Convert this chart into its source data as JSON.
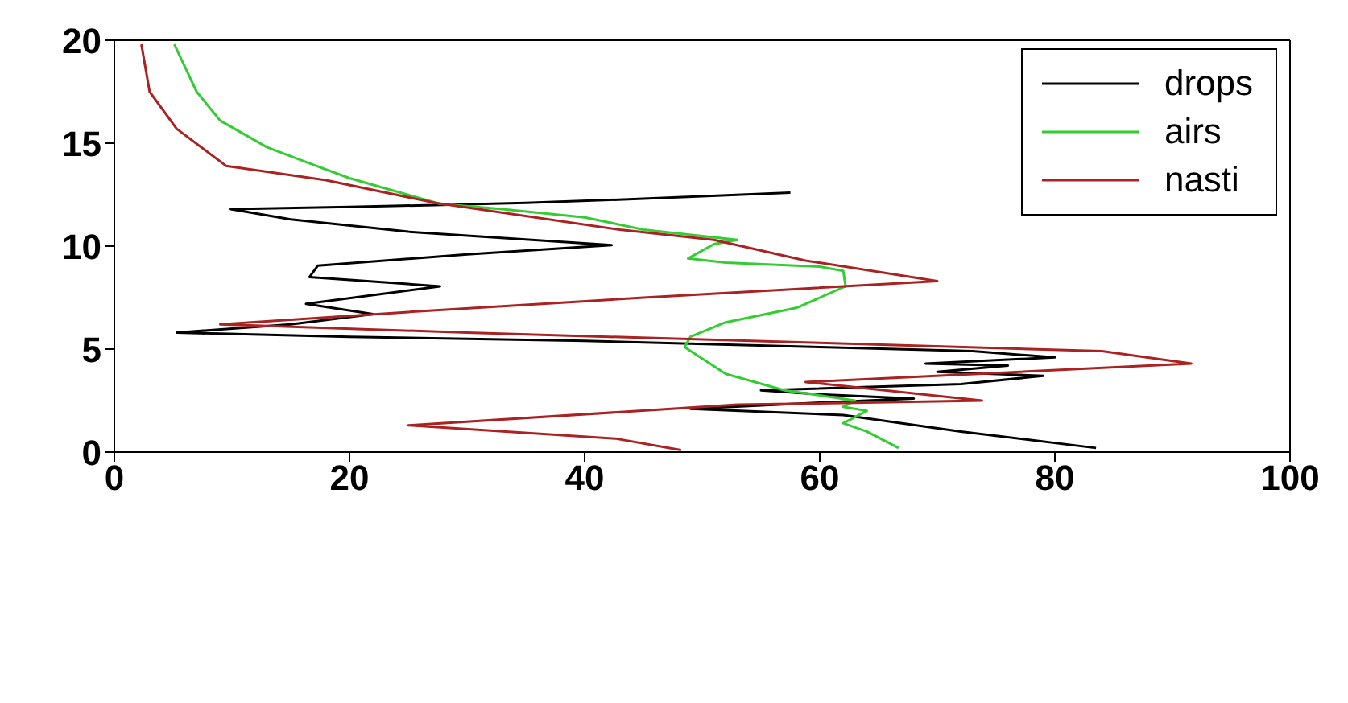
{
  "chart_data": {
    "type": "line",
    "xlim": [
      0,
      100
    ],
    "xticks": [
      0,
      20,
      40,
      60,
      80,
      100
    ],
    "ylim": [
      0,
      20
    ],
    "yticks": [
      0,
      5,
      10,
      15,
      20
    ],
    "legend": "top right",
    "marker": "none",
    "line_style": "solid",
    "series": [
      {
        "name": "drops",
        "color": "#000000",
        "x": [
          83.5,
          72,
          62,
          49,
          60,
          68,
          60,
          55,
          72,
          79,
          70,
          76,
          69,
          80,
          73,
          60,
          40,
          20,
          5.3,
          15,
          22,
          16.3,
          27.7,
          16.6,
          17.3,
          30,
          42.3,
          25,
          15,
          9.9,
          20,
          35,
          45,
          57.5
        ],
        "values": [
          0.2,
          1.0,
          1.8,
          2.1,
          2.4,
          2.6,
          2.8,
          3.0,
          3.3,
          3.7,
          3.9,
          4.2,
          4.3,
          4.6,
          4.9,
          5.1,
          5.4,
          5.6,
          5.8,
          6.2,
          6.7,
          7.2,
          8.05,
          8.5,
          9.05,
          9.6,
          10.05,
          10.7,
          11.3,
          11.8,
          11.9,
          12.1,
          12.3,
          12.6
        ]
      },
      {
        "name": "airs",
        "color": "#33cc33",
        "x": [
          66.7,
          64,
          62,
          64,
          62,
          63,
          57,
          52,
          48.5,
          49,
          52,
          58,
          60,
          62.2,
          62,
          60,
          52,
          48.8,
          51,
          53,
          45,
          40,
          33,
          27.7,
          20,
          16.7,
          13,
          9,
          7,
          5.1
        ],
        "values": [
          0.2,
          1.0,
          1.4,
          2.0,
          2.2,
          2.5,
          3.0,
          3.8,
          5.1,
          5.6,
          6.3,
          7.0,
          7.5,
          8.05,
          8.8,
          9.0,
          9.2,
          9.4,
          10.1,
          10.3,
          10.8,
          11.4,
          11.8,
          12.05,
          13.3,
          14.0,
          14.8,
          16.1,
          17.5,
          19.8
        ]
      },
      {
        "name": "nasti",
        "color": "#aa2222",
        "x": [
          48.2,
          42.7,
          25,
          53,
          73.8,
          58.8,
          91.6,
          84,
          60,
          30,
          9,
          25,
          45,
          70,
          58.8,
          51,
          43,
          27.3,
          18,
          9.5,
          5.3,
          3,
          2.3
        ],
        "values": [
          0.1,
          0.65,
          1.3,
          2.3,
          2.5,
          3.4,
          4.3,
          4.9,
          5.3,
          5.8,
          6.2,
          6.8,
          7.5,
          8.3,
          9.3,
          10.3,
          10.8,
          12.1,
          13.2,
          13.9,
          15.7,
          17.5,
          19.8
        ]
      }
    ]
  }
}
